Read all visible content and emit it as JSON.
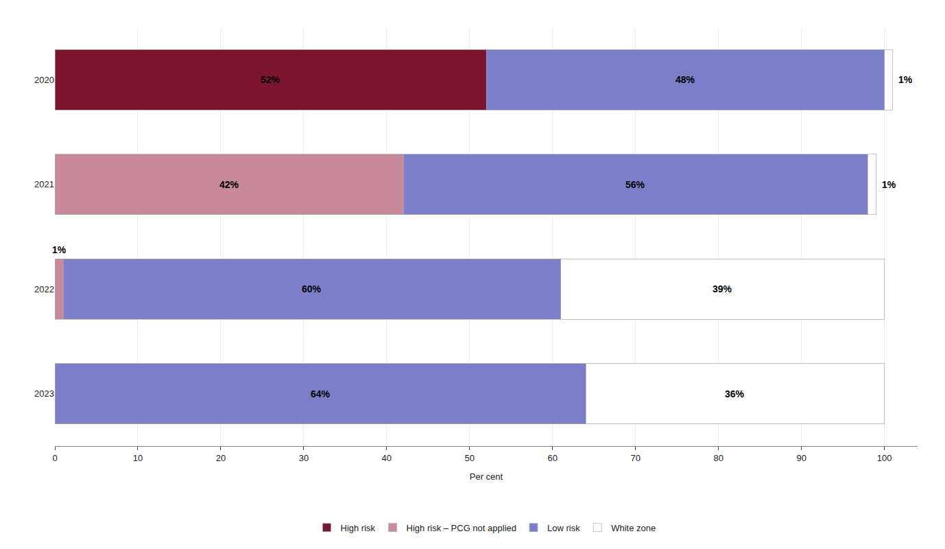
{
  "chart_data": {
    "type": "bar",
    "orientation": "horizontal",
    "stacked": true,
    "categories": [
      "2020",
      "2021",
      "2022",
      "2023"
    ],
    "series": [
      {
        "name": "High risk",
        "color": "#7B1530",
        "values": [
          52,
          0,
          0,
          0
        ],
        "value_labels": [
          "52%",
          null,
          null,
          null
        ]
      },
      {
        "name": "High risk – PCG not applied",
        "color": "#C8899A",
        "values": [
          0,
          42,
          1,
          0
        ],
        "value_labels": [
          null,
          "42%",
          "1%",
          null
        ]
      },
      {
        "name": "Low risk",
        "color": "#7B7EC8",
        "values": [
          48,
          56,
          60,
          64
        ],
        "value_labels": [
          "48%",
          "56%",
          "60%",
          "64%"
        ]
      },
      {
        "name": "White zone",
        "color": "#FFFFFF",
        "values": [
          1,
          1,
          39,
          36
        ],
        "value_labels": [
          "1%",
          "1%",
          "39%",
          "36%"
        ]
      }
    ],
    "xlabel": "Per cent",
    "xlim": [
      0,
      104
    ],
    "xticks": [
      0,
      10,
      20,
      30,
      40,
      50,
      60,
      70,
      80,
      90,
      100
    ],
    "grid": true,
    "legend": "bottom",
    "data_labels": true
  }
}
